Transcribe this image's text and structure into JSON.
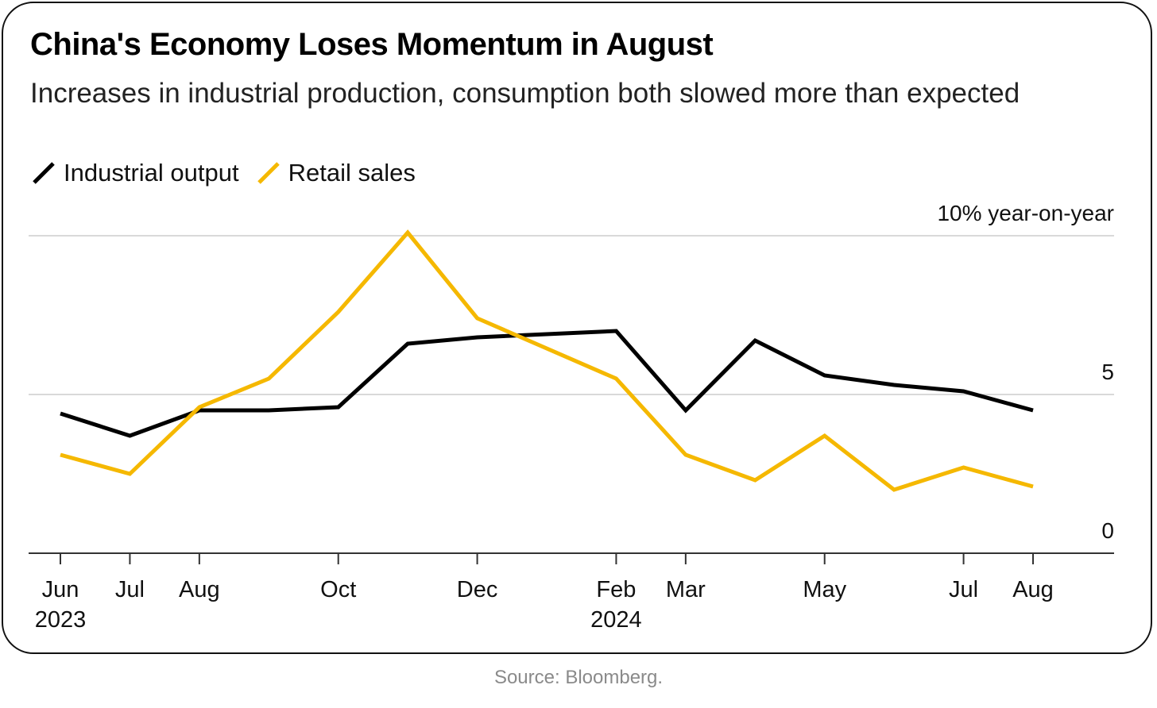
{
  "title": "China's Economy Loses Momentum in August",
  "subtitle": "Increases in industrial production, consumption both slowed more than expected",
  "source": "Source: Bloomberg.",
  "colors": {
    "industrial": "#000000",
    "retail": "#f5b800",
    "grid": "#d9d9d9",
    "axis": "#333333"
  },
  "chart_data": {
    "type": "line",
    "title": "China's Economy Loses Momentum in August",
    "subtitle": "Increases in industrial production, consumption both slowed more than expected",
    "y_unit_label": "10% year-on-year",
    "ylim": [
      0,
      10
    ],
    "y_ticks": [
      {
        "value": 10,
        "label": "10% year-on-year"
      },
      {
        "value": 5,
        "label": "5"
      },
      {
        "value": 0,
        "label": "0"
      }
    ],
    "x_dates": [
      "2023-06",
      "2023-07",
      "2023-08",
      "2023-09",
      "2023-10",
      "2023-11",
      "2023-12",
      "2024-01",
      "2024-02",
      "2024-03",
      "2024-04",
      "2024-05",
      "2024-06",
      "2024-07",
      "2024-08"
    ],
    "x_tick_labels": [
      {
        "date": "2023-06",
        "label": "Jun",
        "year": "2023"
      },
      {
        "date": "2023-07",
        "label": "Jul",
        "year": ""
      },
      {
        "date": "2023-08",
        "label": "Aug",
        "year": ""
      },
      {
        "date": "2023-10",
        "label": "Oct",
        "year": ""
      },
      {
        "date": "2023-12",
        "label": "Dec",
        "year": ""
      },
      {
        "date": "2024-02",
        "label": "Feb",
        "year": "2024"
      },
      {
        "date": "2024-03",
        "label": "Mar",
        "year": ""
      },
      {
        "date": "2024-05",
        "label": "May",
        "year": ""
      },
      {
        "date": "2024-07",
        "label": "Jul",
        "year": ""
      },
      {
        "date": "2024-08",
        "label": "Aug",
        "year": ""
      }
    ],
    "series": [
      {
        "name": "Industrial output",
        "color": "#000000",
        "points": [
          {
            "date": "2023-06",
            "value": 4.4
          },
          {
            "date": "2023-07",
            "value": 3.7
          },
          {
            "date": "2023-08",
            "value": 4.5
          },
          {
            "date": "2023-09",
            "value": 4.5
          },
          {
            "date": "2023-10",
            "value": 4.6
          },
          {
            "date": "2023-11",
            "value": 6.6
          },
          {
            "date": "2023-12",
            "value": 6.8
          },
          {
            "date": "2024-02",
            "value": 7.0
          },
          {
            "date": "2024-03",
            "value": 4.5
          },
          {
            "date": "2024-04",
            "value": 6.7
          },
          {
            "date": "2024-05",
            "value": 5.6
          },
          {
            "date": "2024-06",
            "value": 5.3
          },
          {
            "date": "2024-07",
            "value": 5.1
          },
          {
            "date": "2024-08",
            "value": 4.5
          }
        ]
      },
      {
        "name": "Retail sales",
        "color": "#f5b800",
        "points": [
          {
            "date": "2023-06",
            "value": 3.1
          },
          {
            "date": "2023-07",
            "value": 2.5
          },
          {
            "date": "2023-08",
            "value": 4.6
          },
          {
            "date": "2023-09",
            "value": 5.5
          },
          {
            "date": "2023-10",
            "value": 7.6
          },
          {
            "date": "2023-11",
            "value": 10.1
          },
          {
            "date": "2023-12",
            "value": 7.4
          },
          {
            "date": "2024-02",
            "value": 5.5
          },
          {
            "date": "2024-03",
            "value": 3.1
          },
          {
            "date": "2024-04",
            "value": 2.3
          },
          {
            "date": "2024-05",
            "value": 3.7
          },
          {
            "date": "2024-06",
            "value": 2.0
          },
          {
            "date": "2024-07",
            "value": 2.7
          },
          {
            "date": "2024-08",
            "value": 2.1
          }
        ]
      }
    ],
    "grid": true,
    "legend_position": "top-left"
  }
}
